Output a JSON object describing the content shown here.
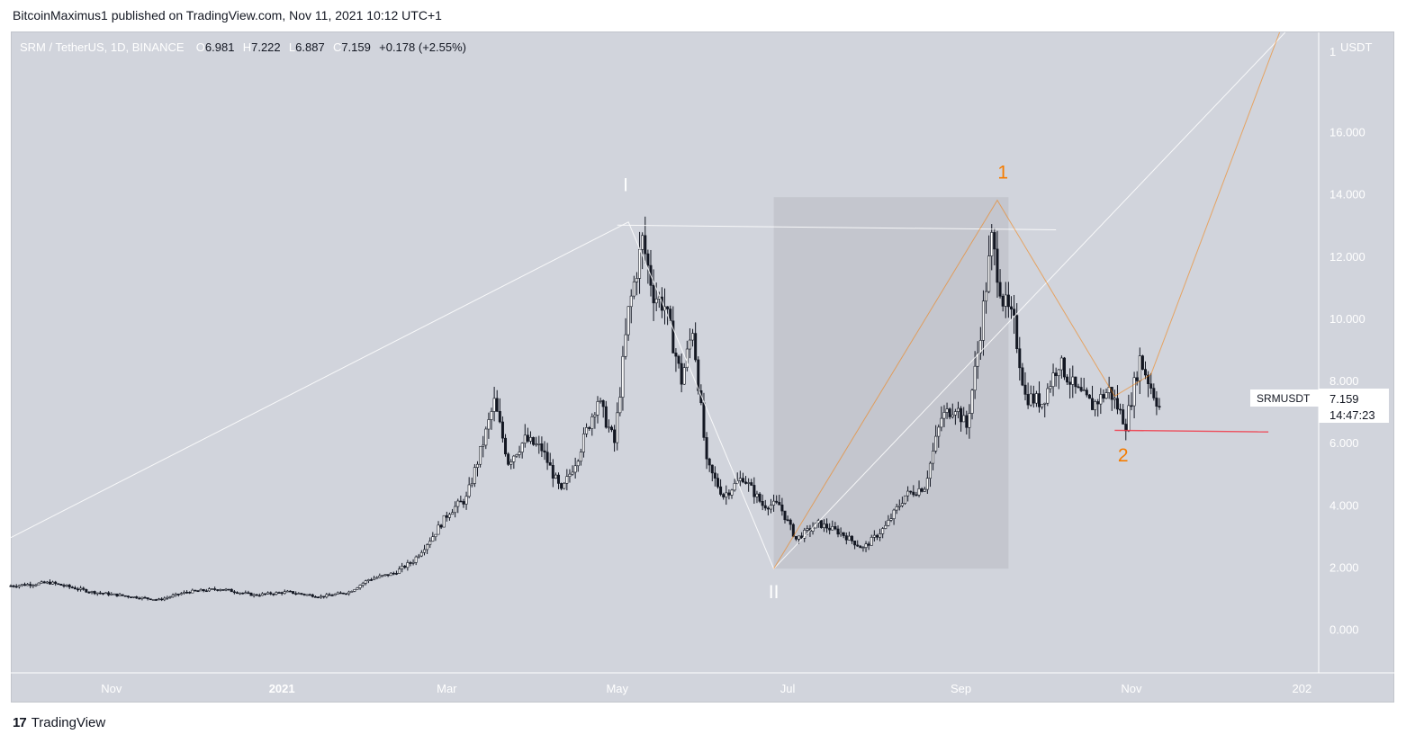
{
  "header": {
    "publisher_text": "BitcoinMaximus1 published on TradingView.com, Nov 11, 2021 10:12 UTC+1"
  },
  "legend": {
    "symbol": "SRM / TetherUS, 1D, BINANCE",
    "open_label": "O",
    "open": "6.981",
    "high_label": "H",
    "high": "7.222",
    "low_label": "L",
    "low": "6.887",
    "close_label": "C",
    "close": "7.159",
    "change": "+0.178 (+2.55%)"
  },
  "price_badge": {
    "ticker": "SRMUSDT",
    "price": "7.159",
    "countdown": "14:47:23"
  },
  "footer": {
    "brand": "TradingView",
    "brand_mark": "17"
  },
  "colors": {
    "background": "#d1d4dc",
    "candle": "#131722",
    "wave_white": "#ffffff",
    "wave_orange": "#f57c00",
    "support_red": "#f23645",
    "shaded_box": "#9598a1"
  },
  "chart_data": {
    "type": "candlestick",
    "y_axis_unit": "USDT",
    "ylim": [
      -1.4,
      19.2
    ],
    "y_ticks": [
      "0.000",
      "2.000",
      "4.000",
      "6.000",
      "8.000",
      "10.000",
      "12.000",
      "14.000",
      "16.000"
    ],
    "y_top_label": "1",
    "x_ticks": [
      {
        "label": "Nov",
        "date": "2020-11-01"
      },
      {
        "label": "2021",
        "date": "2021-01-01"
      },
      {
        "label": "Mar",
        "date": "2021-03-01"
      },
      {
        "label": "May",
        "date": "2021-05-01"
      },
      {
        "label": "Jul",
        "date": "2021-07-01"
      },
      {
        "label": "Sep",
        "date": "2021-09-01"
      },
      {
        "label": "Nov",
        "date": "2021-11-01"
      },
      {
        "label": "202",
        "date": "2022-01-01"
      }
    ],
    "price_path": [
      [
        "2020-09-26",
        1.4
      ],
      [
        "2020-10-10",
        1.5
      ],
      [
        "2020-10-25",
        1.2
      ],
      [
        "2020-11-08",
        1.05
      ],
      [
        "2020-11-18",
        0.95
      ],
      [
        "2020-11-28",
        1.2
      ],
      [
        "2020-12-10",
        1.3
      ],
      [
        "2020-12-22",
        1.1
      ],
      [
        "2021-01-03",
        1.2
      ],
      [
        "2021-01-15",
        1.05
      ],
      [
        "2021-01-25",
        1.2
      ],
      [
        "2021-02-01",
        1.6
      ],
      [
        "2021-02-10",
        1.8
      ],
      [
        "2021-02-17",
        2.2
      ],
      [
        "2021-02-24",
        3.0
      ],
      [
        "2021-03-02",
        3.8
      ],
      [
        "2021-03-08",
        4.2
      ],
      [
        "2021-03-14",
        6.0
      ],
      [
        "2021-03-18",
        7.3
      ],
      [
        "2021-03-23",
        5.4
      ],
      [
        "2021-03-29",
        6.1
      ],
      [
        "2021-04-04",
        5.8
      ],
      [
        "2021-04-11",
        4.4
      ],
      [
        "2021-04-17",
        5.6
      ],
      [
        "2021-04-24",
        7.4
      ],
      [
        "2021-04-30",
        6.0
      ],
      [
        "2021-05-05",
        10.2
      ],
      [
        "2021-05-10",
        12.5
      ],
      [
        "2021-05-14",
        10.8
      ],
      [
        "2021-05-18",
        10.4
      ],
      [
        "2021-05-24",
        8.0
      ],
      [
        "2021-05-28",
        9.7
      ],
      [
        "2021-06-02",
        5.3
      ],
      [
        "2021-06-08",
        4.3
      ],
      [
        "2021-06-15",
        4.9
      ],
      [
        "2021-06-22",
        4.0
      ],
      [
        "2021-06-28",
        4.0
      ],
      [
        "2021-07-04",
        2.9
      ],
      [
        "2021-07-12",
        3.4
      ],
      [
        "2021-07-20",
        3.1
      ],
      [
        "2021-07-28",
        2.6
      ],
      [
        "2021-08-05",
        3.3
      ],
      [
        "2021-08-12",
        4.3
      ],
      [
        "2021-08-19",
        4.6
      ],
      [
        "2021-08-25",
        6.8
      ],
      [
        "2021-08-30",
        7.2
      ],
      [
        "2021-09-03",
        6.5
      ],
      [
        "2021-09-07",
        8.9
      ],
      [
        "2021-09-12",
        12.5
      ],
      [
        "2021-09-16",
        10.6
      ],
      [
        "2021-09-20",
        9.8
      ],
      [
        "2021-09-24",
        7.5
      ],
      [
        "2021-09-30",
        7.3
      ],
      [
        "2021-10-06",
        8.6
      ],
      [
        "2021-10-12",
        7.7
      ],
      [
        "2021-10-18",
        7.2
      ],
      [
        "2021-10-24",
        7.7
      ],
      [
        "2021-10-30",
        6.6
      ],
      [
        "2021-11-04",
        8.7
      ],
      [
        "2021-11-08",
        7.8
      ],
      [
        "2021-11-11",
        7.159
      ]
    ],
    "shaded_region": {
      "x0": "2021-06-26",
      "x1": "2021-09-18",
      "y0": 1.95,
      "y1": 13.9
    },
    "wave_labels": [
      {
        "text": "I",
        "date": "2021-05-04",
        "price": 14.1,
        "color": "#ffffff"
      },
      {
        "text": "II",
        "date": "2021-06-26",
        "price": 1.0,
        "color": "#ffffff"
      },
      {
        "text": "1",
        "date": "2021-09-16",
        "price": 14.5,
        "color": "#f57c00"
      },
      {
        "text": "2",
        "date": "2021-10-29",
        "price": 5.4,
        "color": "#f57c00"
      }
    ],
    "lines": [
      {
        "color": "#ffffff",
        "points": [
          [
            "2020-09-26",
            2.95
          ],
          [
            "2021-05-05",
            13.1
          ],
          [
            "2021-06-26",
            1.95
          ],
          [
            "2021-12-26",
            19.2
          ]
        ]
      },
      {
        "color": "#ffffff",
        "points": [
          [
            "2021-05-01",
            13.0
          ],
          [
            "2021-10-05",
            12.85
          ]
        ]
      },
      {
        "color": "#f57c00",
        "points": [
          [
            "2021-06-26",
            1.95
          ],
          [
            "2021-09-14",
            13.8
          ],
          [
            "2021-10-26",
            7.5
          ],
          [
            "2021-11-08",
            8.2
          ],
          [
            "2021-12-24",
            19.2
          ]
        ]
      },
      {
        "color": "#f23645",
        "points": [
          [
            "2021-10-26",
            6.4
          ],
          [
            "2021-12-20",
            6.35
          ]
        ]
      }
    ]
  }
}
